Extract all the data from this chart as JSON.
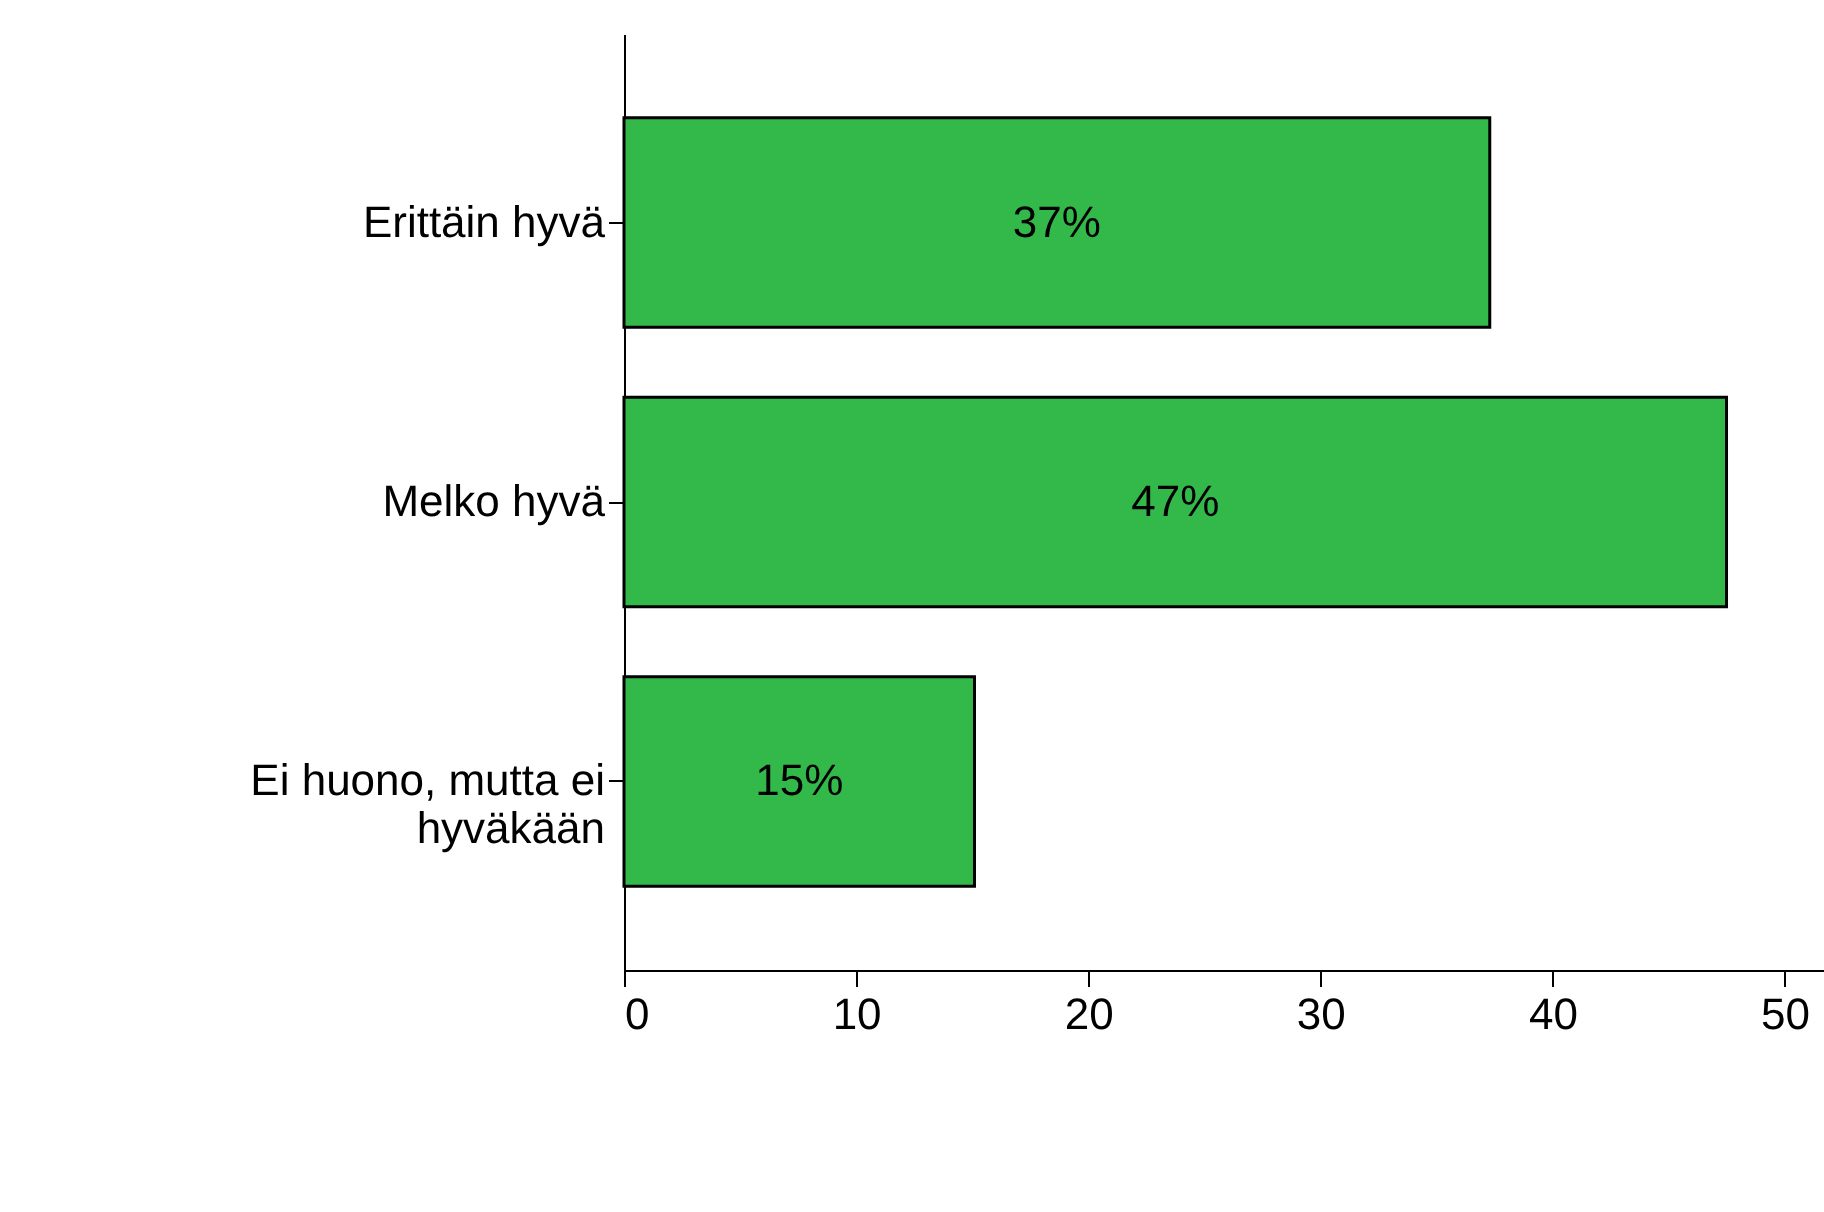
{
  "chart_data": {
    "type": "bar",
    "orientation": "horizontal",
    "categories": [
      "Erittäin hyvä",
      "Melko hyvä",
      "Ei huono, mutta ei\nhyväkään"
    ],
    "values": [
      37.3,
      47.5,
      15.1
    ],
    "value_labels": [
      "37%",
      "47%",
      "15%"
    ],
    "color": "#33b84a",
    "xlim": [
      0,
      51.7
    ],
    "xticks": [
      0,
      10,
      20,
      30,
      40,
      50
    ],
    "grid": false
  }
}
